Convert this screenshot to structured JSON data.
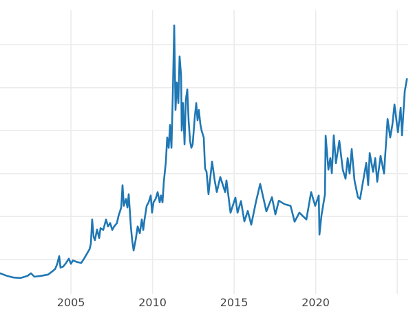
{
  "chart_data": {
    "type": "line",
    "title": "",
    "xlabel": "",
    "ylabel": "",
    "grid": true,
    "legend": "none",
    "xlim": [
      2000.65,
      2025.67
    ],
    "ylim": [
      2.0,
      70.4
    ],
    "xticks": [
      2005,
      2010,
      2015,
      2020,
      2025
    ],
    "xtick_labels": [
      "2005",
      "2010",
      "2015",
      "2020",
      ""
    ],
    "yticks": [
      10,
      20,
      30,
      40,
      50,
      60
    ],
    "ytick_labels": [
      "",
      "",
      "",
      "",
      "",
      ""
    ],
    "colors": {
      "line": "#1f77b4",
      "grid": "#ebebeb",
      "tick_text": "#444444"
    },
    "series": [
      {
        "x": [
          2000.65,
          2001.07,
          2001.49,
          2001.92,
          2002.34,
          2002.55,
          2002.76,
          2003.18,
          2003.6,
          2003.81,
          2004.03,
          2004.15,
          2004.28,
          2004.36,
          2004.53,
          2004.7,
          2004.87,
          2005.0,
          2005.12,
          2005.38,
          2005.63,
          2005.8,
          2005.97,
          2006.14,
          2006.22,
          2006.3,
          2006.39,
          2006.47,
          2006.6,
          2006.73,
          2006.81,
          2006.98,
          2007.15,
          2007.27,
          2007.4,
          2007.53,
          2007.65,
          2007.82,
          2007.91,
          2008.08,
          2008.16,
          2008.24,
          2008.37,
          2008.46,
          2008.54,
          2008.67,
          2008.75,
          2008.84,
          2008.96,
          2009.09,
          2009.22,
          2009.34,
          2009.43,
          2009.51,
          2009.64,
          2009.76,
          2009.89,
          2009.97,
          2010.06,
          2010.19,
          2010.31,
          2010.44,
          2010.52,
          2010.61,
          2010.69,
          2010.82,
          2010.9,
          2010.99,
          2011.07,
          2011.16,
          2011.24,
          2011.33,
          2011.41,
          2011.49,
          2011.58,
          2011.66,
          2011.75,
          2011.79,
          2011.87,
          2011.96,
          2012.04,
          2012.13,
          2012.21,
          2012.3,
          2012.38,
          2012.46,
          2012.59,
          2012.68,
          2012.76,
          2012.84,
          2012.93,
          2013.01,
          2013.14,
          2013.22,
          2013.31,
          2013.43,
          2013.65,
          2013.81,
          2013.94,
          2014.15,
          2014.45,
          2014.53,
          2014.78,
          2015.08,
          2015.21,
          2015.42,
          2015.63,
          2015.84,
          2016.05,
          2016.35,
          2016.6,
          2016.98,
          2017.32,
          2017.53,
          2017.74,
          2018.08,
          2018.46,
          2018.71,
          2019.0,
          2019.43,
          2019.72,
          2019.97,
          2020.19,
          2020.23,
          2020.35,
          2020.57,
          2020.61,
          2020.78,
          2020.9,
          2020.99,
          2021.11,
          2021.24,
          2021.45,
          2021.66,
          2021.83,
          2021.96,
          2022.08,
          2022.21,
          2022.38,
          2022.59,
          2022.72,
          2022.93,
          2023.1,
          2023.22,
          2023.31,
          2023.52,
          2023.65,
          2023.77,
          2023.98,
          2024.19,
          2024.41,
          2024.57,
          2024.7,
          2024.83,
          2025.04,
          2025.21,
          2025.29,
          2025.46,
          2025.59
        ],
        "y": [
          6.8,
          6.2,
          5.8,
          5.7,
          6.2,
          6.8,
          6.0,
          6.2,
          6.5,
          7.1,
          7.8,
          8.9,
          10.8,
          8.1,
          8.4,
          9.2,
          10.2,
          9.0,
          9.8,
          9.4,
          9.2,
          10.2,
          11.3,
          12.4,
          13.7,
          19.3,
          15.3,
          14.5,
          17.0,
          15.0,
          17.3,
          16.9,
          19.3,
          17.7,
          18.5,
          16.9,
          17.7,
          18.5,
          20.1,
          22.1,
          27.3,
          22.5,
          24.1,
          22.1,
          25.2,
          17.7,
          14.5,
          12.1,
          14.5,
          17.7,
          16.1,
          19.3,
          16.9,
          19.3,
          22.5,
          23.3,
          24.9,
          20.9,
          23.3,
          24.1,
          25.7,
          23.3,
          24.9,
          23.3,
          28.1,
          32.8,
          38.4,
          36.0,
          41.3,
          36.0,
          48.0,
          64.5,
          44.8,
          51.2,
          46.4,
          57.3,
          52.8,
          40.0,
          46.4,
          36.8,
          47.2,
          49.6,
          42.4,
          37.6,
          36.0,
          36.8,
          43.2,
          46.4,
          42.4,
          44.8,
          41.6,
          40.0,
          38.4,
          31.2,
          30.4,
          25.2,
          32.8,
          28.4,
          25.7,
          29.2,
          25.7,
          28.4,
          20.9,
          24.4,
          20.9,
          23.6,
          18.9,
          21.3,
          18.1,
          23.6,
          27.6,
          21.2,
          24.5,
          20.5,
          23.7,
          22.9,
          22.5,
          18.8,
          20.9,
          19.3,
          25.7,
          22.5,
          24.9,
          15.8,
          20.1,
          25.2,
          38.8,
          30.9,
          33.6,
          30.1,
          38.9,
          32.4,
          37.6,
          30.9,
          28.8,
          33.6,
          30.0,
          35.7,
          28.4,
          24.5,
          24.1,
          28.8,
          32.5,
          27.3,
          34.8,
          30.4,
          33.6,
          28.1,
          34.1,
          30.0,
          42.7,
          38.4,
          41.3,
          46.1,
          39.6,
          45.3,
          38.9,
          49.1,
          52.0
        ]
      }
    ]
  }
}
